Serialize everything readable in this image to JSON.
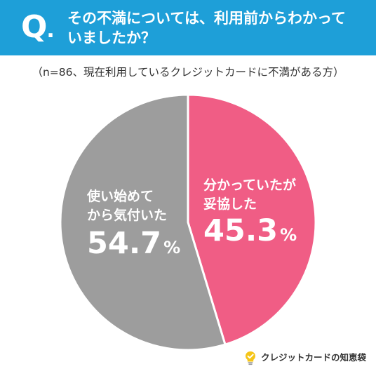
{
  "header": {
    "q_letter": "Q",
    "q_dot": ".",
    "question_line1": "その不満については、利用前からわかって",
    "question_line2": "いましたか？",
    "bg_color": "#1e9fd8"
  },
  "note": "（n=86、現在利用しているクレジットカードに不満がある方）",
  "chart_data": {
    "type": "pie",
    "title": "その不満については、利用前からわかっていましたか？",
    "start": "12 o'clock, clockwise",
    "slices": [
      {
        "label_lines": [
          "分かっていたが",
          "妥協した"
        ],
        "value": 45.3,
        "value_text": "45.3",
        "unit": "%",
        "color": "#f05d85"
      },
      {
        "label_lines": [
          "使い始めて",
          "から気付いた"
        ],
        "value": 54.7,
        "value_text": "54.7",
        "unit": "%",
        "color": "#9d9d9d"
      }
    ]
  },
  "brand": {
    "text": "クレジットカードの知恵袋",
    "icon": "lightbulb-check-icon",
    "icon_color": "#f5c518"
  }
}
